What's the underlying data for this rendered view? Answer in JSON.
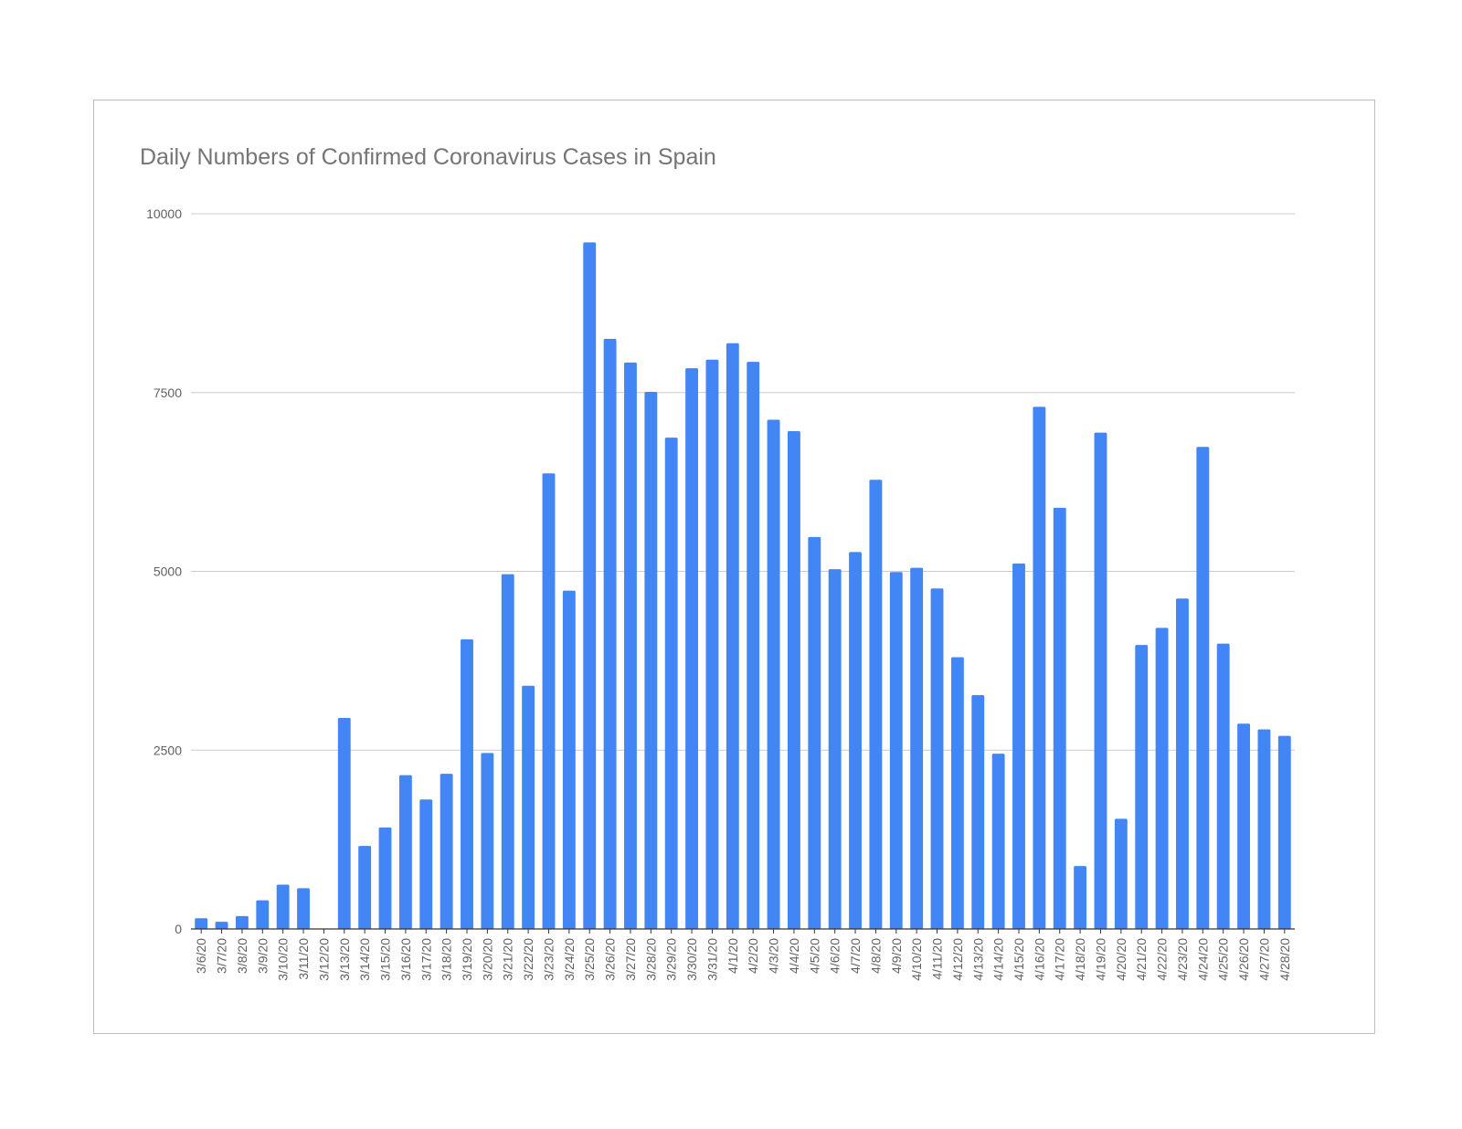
{
  "chart_data": {
    "type": "bar",
    "title": "Daily Numbers of Confirmed Coronavirus Cases in Spain",
    "xlabel": "",
    "ylabel": "",
    "ylim": [
      0,
      10000
    ],
    "yticks": [
      0,
      2500,
      5000,
      7500,
      10000
    ],
    "grid": true,
    "legend": "none",
    "bar_color": "#4285f4",
    "categories": [
      "3/6/20",
      "3/7/20",
      "3/8/20",
      "3/9/20",
      "3/10/20",
      "3/11/20",
      "3/12/20",
      "3/13/20",
      "3/14/20",
      "3/15/20",
      "3/16/20",
      "3/17/20",
      "3/18/20",
      "3/19/20",
      "3/20/20",
      "3/21/20",
      "3/22/20",
      "3/23/20",
      "3/24/20",
      "3/25/20",
      "3/26/20",
      "3/27/20",
      "3/28/20",
      "3/29/20",
      "3/30/20",
      "3/31/20",
      "4/1/20",
      "4/2/20",
      "4/3/20",
      "4/4/20",
      "4/5/20",
      "4/6/20",
      "4/7/20",
      "4/8/20",
      "4/9/20",
      "4/10/20",
      "4/11/20",
      "4/12/20",
      "4/13/20",
      "4/14/20",
      "4/15/20",
      "4/16/20",
      "4/17/20",
      "4/18/20",
      "4/19/20",
      "4/20/20",
      "4/21/20",
      "4/22/20",
      "4/23/20",
      "4/24/20",
      "4/25/20",
      "4/26/20",
      "4/27/20",
      "4/28/20"
    ],
    "values": [
      150,
      100,
      180,
      400,
      620,
      570,
      0,
      2950,
      1160,
      1420,
      2150,
      1810,
      2170,
      4050,
      2460,
      4960,
      3400,
      6370,
      4730,
      9600,
      8250,
      7920,
      7510,
      6870,
      7840,
      7960,
      8190,
      7930,
      7120,
      6960,
      5480,
      5030,
      5270,
      6280,
      4990,
      5050,
      4760,
      3800,
      3270,
      2450,
      5110,
      7300,
      5890,
      880,
      6940,
      1540,
      3970,
      4210,
      4620,
      6740,
      3990,
      2870,
      2790,
      2700
    ]
  }
}
